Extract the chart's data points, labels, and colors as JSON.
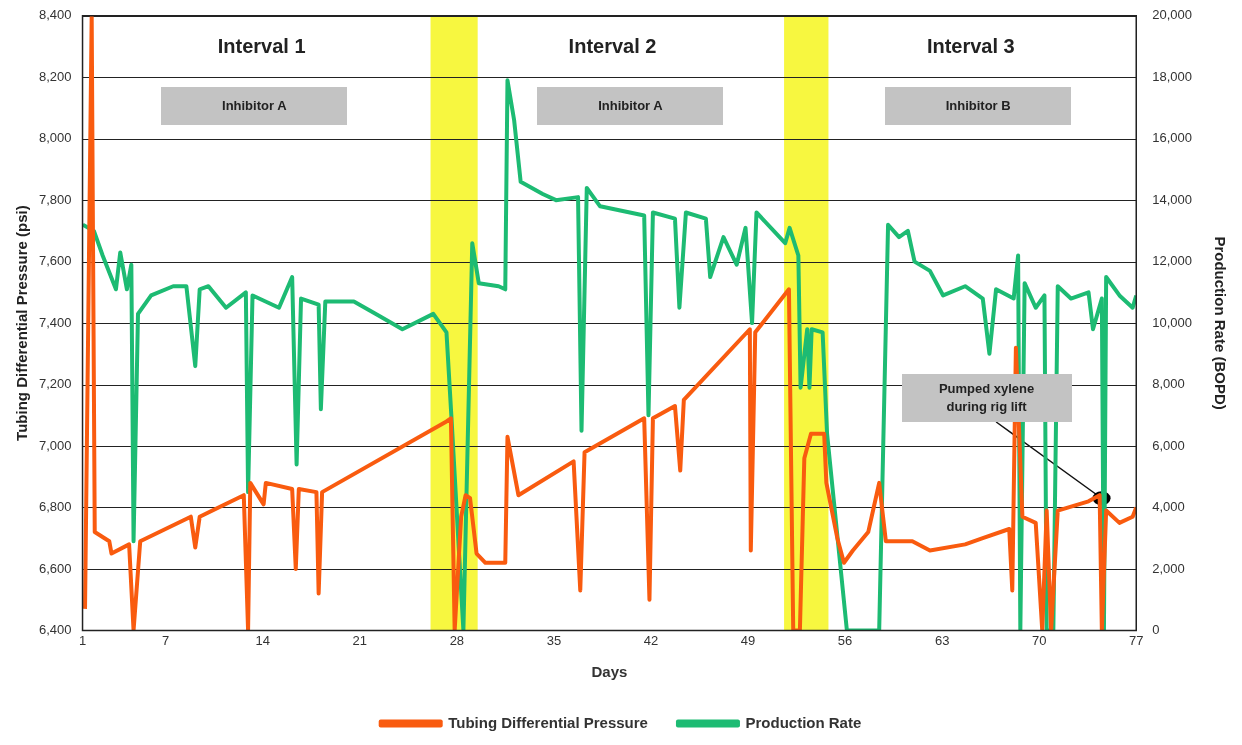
{
  "chart_data": {
    "type": "line",
    "xlabel": "Days",
    "ylabel": "Tubing Differential Pressure (psi)",
    "y2label": "Production Rate (BOPD)",
    "xlim": [
      1,
      77
    ],
    "xticks": [
      1,
      7,
      14,
      21,
      28,
      35,
      42,
      49,
      56,
      63,
      70,
      77
    ],
    "ylim": [
      6400,
      8400
    ],
    "yticks": [
      {
        "value": 6400,
        "label": "6,400"
      },
      {
        "value": 6600,
        "label": "6,600"
      },
      {
        "value": 6800,
        "label": "6,800"
      },
      {
        "value": 7000,
        "label": "7,000"
      },
      {
        "value": 7200,
        "label": "7,200"
      },
      {
        "value": 7400,
        "label": "7,400"
      },
      {
        "value": 7600,
        "label": "7,600"
      },
      {
        "value": 7800,
        "label": "7,800"
      },
      {
        "value": 8000,
        "label": "8,000"
      },
      {
        "value": 8200,
        "label": "8,200"
      },
      {
        "value": 8400,
        "label": "8,400"
      }
    ],
    "y2lim": [
      0,
      20000
    ],
    "y2ticks": [
      0,
      {
        "value": 2000,
        "label": "2,000"
      },
      {
        "value": 4000,
        "label": "4,000"
      },
      {
        "value": 6000,
        "label": "6,000"
      },
      {
        "value": 8000,
        "label": "8,000"
      },
      {
        "value": 10000,
        "label": "10,000"
      },
      {
        "value": 12000,
        "label": "12,000"
      },
      {
        "value": 14000,
        "label": "14,000"
      },
      {
        "value": 16000,
        "label": "16,000"
      },
      {
        "value": 18000,
        "label": "18,000"
      },
      {
        "value": 20000,
        "label": "20,000"
      }
    ],
    "grid": "y",
    "legend": "bottom",
    "marker": "none",
    "line_style": "solid",
    "series": [
      {
        "name": "Tubing Differential Pressure",
        "color": "#f95b0f",
        "axis": "y",
        "x": [
          1.18,
          1.66,
          1.88,
          2.93,
          3.09,
          4.36,
          4.68,
          5.16,
          8.81,
          9.13,
          9.45,
          12.63,
          12.94,
          13.1,
          14.06,
          14.22,
          16.12,
          16.38,
          16.6,
          17.87,
          18.03,
          18.28,
          27.25,
          27.57,
          27.84,
          28.31,
          28.63,
          28.95,
          29.42,
          30.06,
          31.49,
          31.65,
          32.44,
          36.42,
          36.9,
          37.21,
          41.51,
          41.89,
          42.14,
          43.73,
          44.11,
          44.37,
          49.13,
          49.2,
          49.52,
          51.95,
          52.26,
          52.74,
          53.06,
          53.54,
          54.49,
          54.65,
          55.44,
          55.92,
          56.56,
          57.67,
          58.46,
          58.94,
          60.85,
          62.12,
          64.66,
          65.93,
          67.84,
          68.06,
          68.32,
          68.79,
          69.75,
          70.22,
          70.54,
          70.86,
          71.34,
          73.56,
          74.36,
          74.52,
          74.83,
          75.79,
          76.74,
          77
        ],
        "values": [
          6470,
          8400,
          6720,
          6690,
          6650,
          6680,
          6400,
          6690,
          6770,
          6670,
          6770,
          6840,
          6400,
          6880,
          6810,
          6880,
          6860,
          6600,
          6860,
          6850,
          6520,
          6850,
          7080,
          7090,
          6400,
          6770,
          6840,
          6830,
          6650,
          6620,
          6620,
          7030,
          6840,
          6950,
          6530,
          6980,
          7090,
          6500,
          7090,
          7130,
          6920,
          7150,
          7380,
          6660,
          7370,
          7510,
          6400,
          6400,
          6960,
          7040,
          7040,
          6880,
          6700,
          6620,
          6660,
          6720,
          6880,
          6690,
          6690,
          6660,
          6680,
          6700,
          6730,
          6530,
          7320,
          6770,
          6750,
          6400,
          6790,
          6400,
          6790,
          6820,
          6840,
          6400,
          6790,
          6750,
          6770,
          6800
        ]
      },
      {
        "name": "Production Rate",
        "color": "#1dbb73",
        "axis": "y2",
        "x": [
          1.02,
          1.82,
          2.45,
          3.41,
          3.72,
          4.2,
          4.52,
          4.68,
          5.0,
          5.95,
          7.54,
          8.49,
          9.13,
          9.45,
          10.08,
          11.35,
          12.78,
          12.94,
          13.26,
          15.17,
          16.12,
          16.44,
          16.76,
          18.03,
          18.19,
          18.51,
          20.57,
          22.16,
          24.07,
          26.3,
          27.25,
          27.6,
          28.47,
          29.11,
          29.58,
          31.01,
          31.49,
          31.65,
          32.13,
          32.6,
          34.19,
          35.15,
          36.74,
          36.99,
          37.37,
          38.33,
          41.51,
          41.82,
          42.14,
          43.73,
          44.05,
          44.52,
          45.96,
          46.27,
          47.23,
          48.18,
          48.82,
          49.29,
          49.61,
          51.68,
          52.0,
          52.63,
          52.79,
          53.27,
          53.43,
          53.59,
          54.38,
          54.7,
          56.13,
          58.46,
          59.1,
          59.89,
          60.53,
          61.01,
          62.12,
          63.07,
          64.66,
          65.93,
          66.41,
          66.89,
          68.16,
          68.48,
          68.64,
          68.95,
          69.75,
          70.38,
          70.54,
          71.02,
          71.34,
          72.29,
          73.56,
          73.88,
          74.52,
          74.67,
          74.83,
          75.79,
          76.74,
          77
        ],
        "values": [
          13200,
          13000,
          12200,
          11100,
          12300,
          11100,
          11900,
          2900,
          10300,
          10900,
          11200,
          11200,
          8600,
          11100,
          11200,
          10500,
          11000,
          4500,
          10900,
          10500,
          11500,
          5400,
          10800,
          10600,
          7200,
          10700,
          10700,
          10300,
          9800,
          10300,
          9700,
          7000,
          0,
          12600,
          11300,
          11200,
          11100,
          17900,
          16600,
          14600,
          14200,
          14000,
          14100,
          6500,
          14400,
          13800,
          13500,
          7000,
          13600,
          13400,
          10500,
          13600,
          13400,
          11500,
          12800,
          11900,
          13100,
          10000,
          13600,
          12600,
          13100,
          12200,
          7900,
          9800,
          7900,
          9800,
          9700,
          6400,
          0,
          0,
          13200,
          12800,
          13000,
          12000,
          11700,
          10900,
          11200,
          10800,
          9000,
          11100,
          10800,
          12200,
          0,
          11300,
          10500,
          10900,
          0,
          0,
          11200,
          10800,
          11000,
          9800,
          10800,
          0,
          11500,
          10900,
          10500,
          10900
        ]
      }
    ],
    "bands": [
      {
        "axis": "x",
        "from": 26.1,
        "to": 29.5,
        "color": "#f7f740"
      },
      {
        "axis": "x",
        "from": 51.6,
        "to": 54.8,
        "color": "#f7f740"
      }
    ],
    "annotations": [
      "Interval 1",
      "Inhibitor A",
      "Interval 2",
      "Inhibitor A",
      "Interval 3",
      "Inhibitor B",
      {
        "text": "Pumped xylene\nduring rig lift",
        "x": 74.5,
        "y": 6830
      }
    ]
  }
}
